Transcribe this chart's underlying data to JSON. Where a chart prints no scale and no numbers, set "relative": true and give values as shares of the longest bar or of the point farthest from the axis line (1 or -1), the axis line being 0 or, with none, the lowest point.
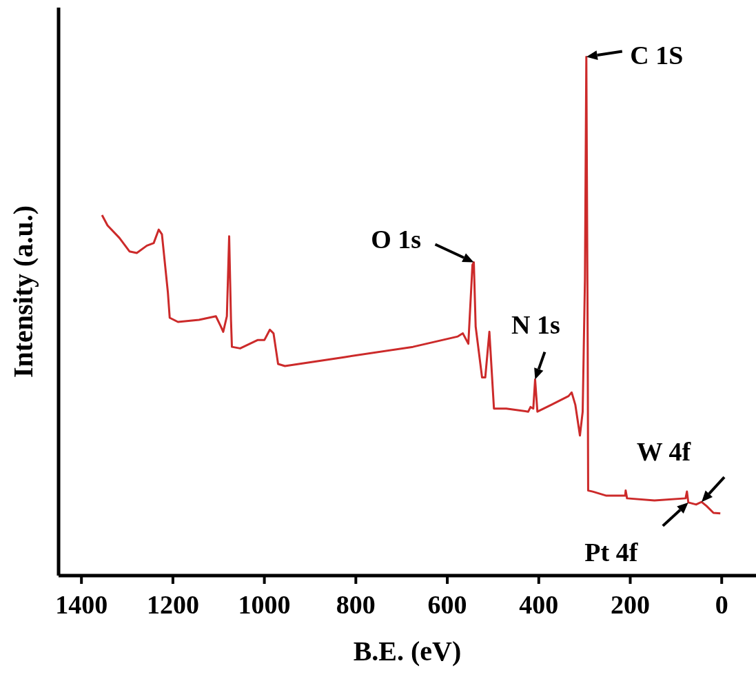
{
  "chart_data": {
    "type": "line",
    "xlabel": "B.E. (eV)",
    "ylabel": "Intensity (a.u.)",
    "relative": true,
    "xlim": [
      1450,
      -75
    ],
    "xticks": [
      1400,
      1200,
      1000,
      800,
      600,
      400,
      200,
      0
    ],
    "grid": false,
    "legend": false,
    "marker": "none",
    "line_style": "solid",
    "series": [
      {
        "color": "#cc2a2a",
        "x": [
          1355,
          1343,
          1317,
          1295,
          1279,
          1257,
          1242,
          1231,
          1224,
          1211,
          1207,
          1189,
          1143,
          1106,
          1095,
          1090,
          1082,
          1077,
          1073,
          1071,
          1053,
          1015,
          1000,
          988,
          980,
          970,
          955,
          826,
          675,
          577,
          566,
          554,
          545,
          542,
          538,
          524,
          517,
          508,
          498,
          471,
          423,
          418,
          412,
          408,
          403,
          373,
          335,
          328,
          320,
          310,
          304,
          299,
          296,
          293,
          292,
          282,
          252,
          211,
          210,
          207,
          147,
          79,
          76,
          73,
          56,
          44,
          33,
          18,
          3
        ],
        "values": [
          0.695,
          0.675,
          0.651,
          0.625,
          0.622,
          0.636,
          0.641,
          0.667,
          0.658,
          0.546,
          0.497,
          0.489,
          0.493,
          0.5,
          0.48,
          0.47,
          0.5,
          0.654,
          0.493,
          0.441,
          0.438,
          0.454,
          0.454,
          0.474,
          0.467,
          0.408,
          0.404,
          0.421,
          0.441,
          0.461,
          0.467,
          0.447,
          0.599,
          0.604,
          0.48,
          0.382,
          0.382,
          0.47,
          0.322,
          0.322,
          0.316,
          0.325,
          0.322,
          0.378,
          0.316,
          0.329,
          0.346,
          0.353,
          0.329,
          0.27,
          0.316,
          0.572,
          1,
          0.441,
          0.164,
          0.162,
          0.154,
          0.154,
          0.164,
          0.149,
          0.145,
          0.149,
          0.162,
          0.141,
          0.137,
          0.142,
          0.134,
          0.121,
          0.12
        ]
      }
    ],
    "annotations": [
      {
        "text": "O 1s",
        "x": 542,
        "y": 0.604
      },
      {
        "text": "N 1s",
        "x": 408,
        "y": 0.378
      },
      {
        "text": "C 1S",
        "x": 296,
        "y": 1
      },
      {
        "text": "W 4f",
        "x": 44,
        "y": 0.142
      },
      {
        "text": "Pt 4f",
        "x": 73,
        "y": 0.141
      }
    ]
  }
}
